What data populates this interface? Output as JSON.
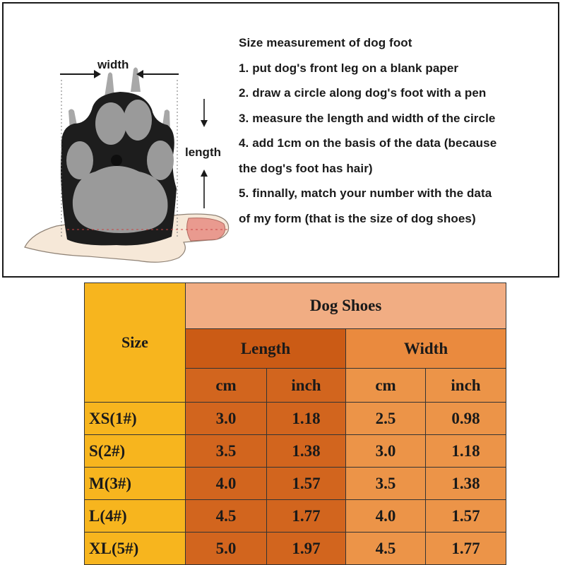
{
  "instructions": {
    "title": "Size measurement of dog foot",
    "steps": [
      "1. put dog's front leg on a blank paper",
      "2. draw a circle along dog's foot with a pen",
      "3. measure the length and width of the circle",
      "4. add 1cm on the basis of the data (because",
      "the dog's foot has hair)",
      "5. finnally, match your number with the data",
      "of my form (that is the size of dog shoes)"
    ]
  },
  "illustration": {
    "width_label": "width",
    "length_label": "length"
  },
  "table": {
    "size_header": "Size",
    "group_header": "Dog Shoes",
    "length_header": "Length",
    "width_header": "Width",
    "units": [
      "cm",
      "inch",
      "cm",
      "inch"
    ],
    "rows": [
      {
        "size": "XS(1#)",
        "values": [
          "3.0",
          "1.18",
          "2.5",
          "0.98"
        ]
      },
      {
        "size": "S(2#)",
        "values": [
          "3.5",
          "1.38",
          "3.0",
          "1.18"
        ]
      },
      {
        "size": "M(3#)",
        "values": [
          "4.0",
          "1.57",
          "3.5",
          "1.38"
        ]
      },
      {
        "size": "L(4#)",
        "values": [
          "4.5",
          "1.77",
          "4.0",
          "1.57"
        ]
      },
      {
        "size": "XL(5#)",
        "values": [
          "5.0",
          "1.97",
          "4.5",
          "1.77"
        ]
      }
    ]
  },
  "colors": {
    "size_column": "#f7b51e",
    "dog_shoes_header": "#f1ad83",
    "length_header": "#cb5b15",
    "width_header": "#ea8a3e",
    "length_cells": "#d2651e",
    "width_cells": "#ec9448"
  }
}
